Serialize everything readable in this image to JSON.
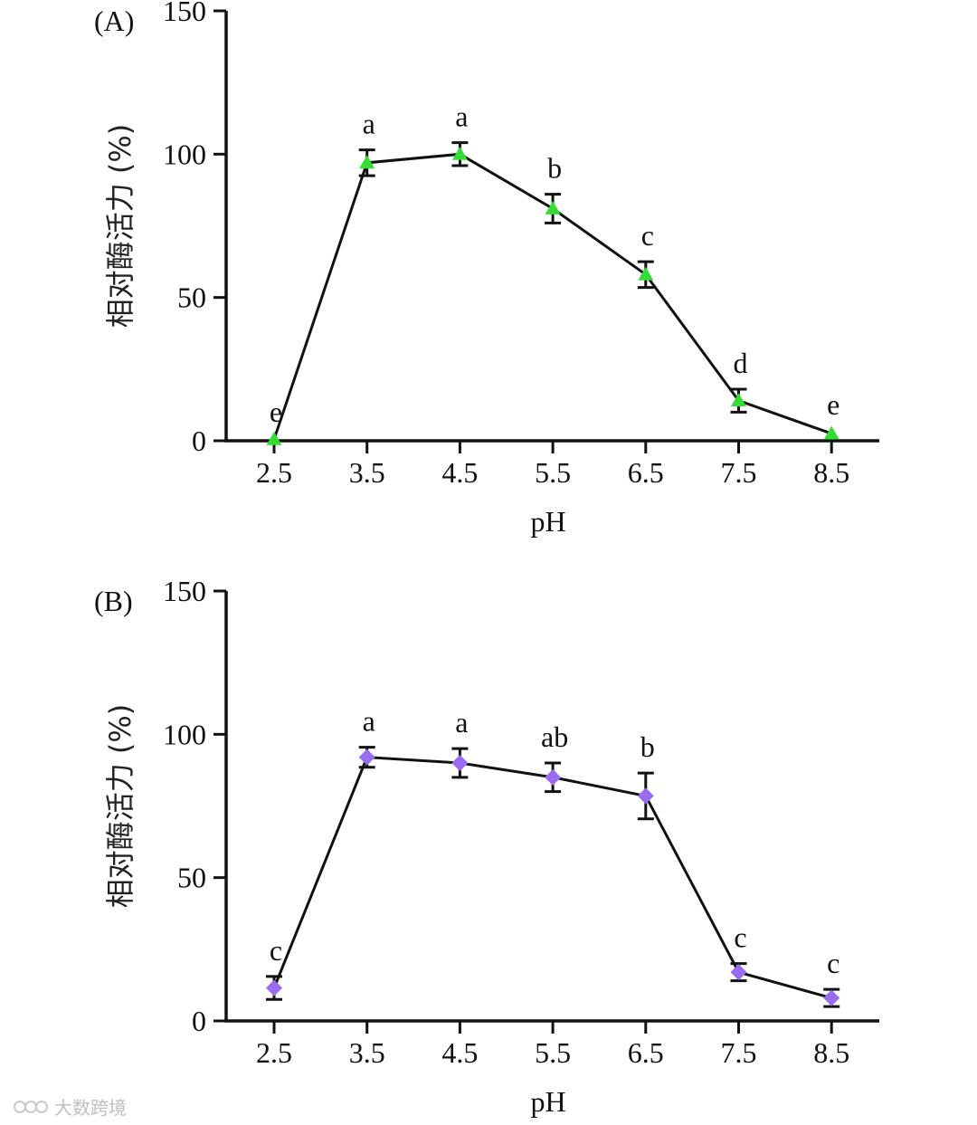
{
  "chart_data": [
    {
      "type": "line",
      "panel_label": "(A)",
      "title": "",
      "xlabel": "pH",
      "ylabel": "相对酶活力 (%)",
      "categories": [
        "2.5",
        "3.5",
        "4.5",
        "5.5",
        "6.5",
        "7.5",
        "8.5"
      ],
      "x": [
        2.5,
        3.5,
        4.5,
        5.5,
        6.5,
        7.5,
        8.5
      ],
      "values": [
        0.5,
        97,
        100,
        81,
        58,
        14,
        2.5
      ],
      "errors": [
        0.5,
        4.5,
        4,
        5,
        4.5,
        4,
        1
      ],
      "significance": [
        "e",
        "a",
        "a",
        "b",
        "c",
        "d",
        "e"
      ],
      "ylim": [
        0,
        150
      ],
      "yticks": [
        0,
        50,
        100,
        150
      ],
      "marker": "triangle",
      "marker_color": "#33dd33",
      "line_color": "#111111"
    },
    {
      "type": "line",
      "panel_label": "(B)",
      "title": "",
      "xlabel": "pH",
      "ylabel": "相对酶活力 (%)",
      "categories": [
        "2.5",
        "3.5",
        "4.5",
        "5.5",
        "6.5",
        "7.5",
        "8.5"
      ],
      "x": [
        2.5,
        3.5,
        4.5,
        5.5,
        6.5,
        7.5,
        8.5
      ],
      "values": [
        11.5,
        92,
        90,
        85,
        78.5,
        17,
        8
      ],
      "errors": [
        4,
        3.5,
        5,
        5,
        8,
        3,
        3
      ],
      "significance": [
        "c",
        "a",
        "a",
        "ab",
        "b",
        "c",
        "c"
      ],
      "ylim": [
        0,
        150
      ],
      "yticks": [
        0,
        50,
        100,
        150
      ],
      "marker": "diamond",
      "marker_color": "#9a6cf0",
      "line_color": "#111111"
    }
  ],
  "watermark": {
    "text": "大数跨境"
  }
}
